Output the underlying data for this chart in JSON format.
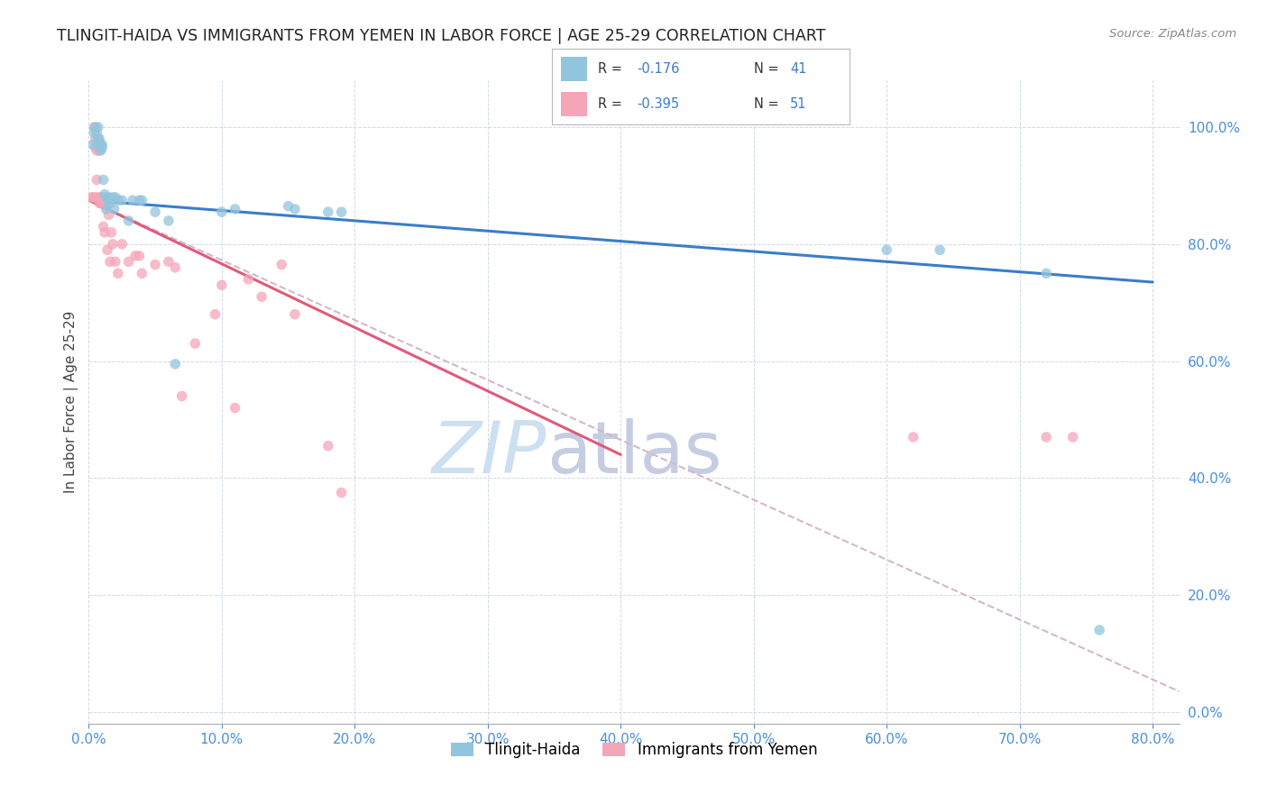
{
  "title": "TLINGIT-HAIDA VS IMMIGRANTS FROM YEMEN IN LABOR FORCE | AGE 25-29 CORRELATION CHART",
  "source": "Source: ZipAtlas.com",
  "xlabel_ticks": [
    "0.0%",
    "10.0%",
    "20.0%",
    "30.0%",
    "40.0%",
    "50.0%",
    "60.0%",
    "70.0%",
    "80.0%"
  ],
  "ylabel_ticks": [
    "0.0%",
    "20.0%",
    "40.0%",
    "60.0%",
    "80.0%",
    "100.0%"
  ],
  "xlim": [
    0,
    0.82
  ],
  "ylim": [
    -0.02,
    1.08
  ],
  "color_blue": "#92c5de",
  "color_pink": "#f4a6b8",
  "color_trendline_blue": "#3a7dc9",
  "color_trendline_pink": "#e05a7a",
  "color_dashed": "#d4b8c8",
  "watermark": "ZIPatlas",
  "ylabel": "In Labor Force | Age 25-29",
  "blue_points_x": [
    0.003,
    0.004,
    0.005,
    0.006,
    0.007,
    0.007,
    0.008,
    0.008,
    0.009,
    0.009,
    0.01,
    0.01,
    0.011,
    0.012,
    0.013,
    0.013,
    0.015,
    0.015,
    0.016,
    0.018,
    0.019,
    0.02,
    0.022,
    0.025,
    0.03,
    0.033,
    0.038,
    0.04,
    0.05,
    0.06,
    0.065,
    0.1,
    0.11,
    0.15,
    0.155,
    0.18,
    0.19,
    0.6,
    0.64,
    0.72,
    0.76
  ],
  "blue_points_y": [
    0.97,
    0.99,
    1.0,
    0.99,
    1.0,
    0.98,
    0.98,
    0.97,
    0.97,
    0.96,
    0.965,
    0.97,
    0.91,
    0.885,
    0.88,
    0.86,
    0.88,
    0.875,
    0.87,
    0.88,
    0.86,
    0.88,
    0.875,
    0.875,
    0.84,
    0.875,
    0.875,
    0.875,
    0.855,
    0.84,
    0.595,
    0.855,
    0.86,
    0.865,
    0.86,
    0.855,
    0.855,
    0.79,
    0.79,
    0.75,
    0.14
  ],
  "pink_points_x": [
    0.002,
    0.003,
    0.004,
    0.005,
    0.005,
    0.005,
    0.006,
    0.006,
    0.006,
    0.007,
    0.007,
    0.008,
    0.008,
    0.008,
    0.009,
    0.009,
    0.01,
    0.01,
    0.011,
    0.011,
    0.012,
    0.013,
    0.014,
    0.015,
    0.016,
    0.017,
    0.018,
    0.02,
    0.022,
    0.025,
    0.03,
    0.035,
    0.038,
    0.04,
    0.05,
    0.06,
    0.065,
    0.07,
    0.08,
    0.095,
    0.1,
    0.11,
    0.12,
    0.13,
    0.145,
    0.155,
    0.18,
    0.19,
    0.62,
    0.72,
    0.74
  ],
  "pink_points_y": [
    0.88,
    0.88,
    1.0,
    0.98,
    0.965,
    0.88,
    0.97,
    0.96,
    0.91,
    0.97,
    0.88,
    0.97,
    0.87,
    0.96,
    0.87,
    0.88,
    0.88,
    0.875,
    0.87,
    0.83,
    0.82,
    0.865,
    0.79,
    0.85,
    0.77,
    0.82,
    0.8,
    0.77,
    0.75,
    0.8,
    0.77,
    0.78,
    0.78,
    0.75,
    0.765,
    0.77,
    0.76,
    0.54,
    0.63,
    0.68,
    0.73,
    0.52,
    0.74,
    0.71,
    0.765,
    0.68,
    0.455,
    0.375,
    0.47,
    0.47,
    0.47
  ],
  "blue_trend_x": [
    0.0,
    0.8
  ],
  "blue_trend_y": [
    0.875,
    0.735
  ],
  "pink_trend_x": [
    0.0,
    0.4
  ],
  "pink_trend_y": [
    0.875,
    0.44
  ],
  "dashed_trend_x": [
    0.0,
    0.82
  ],
  "dashed_trend_y": [
    0.875,
    0.035
  ]
}
